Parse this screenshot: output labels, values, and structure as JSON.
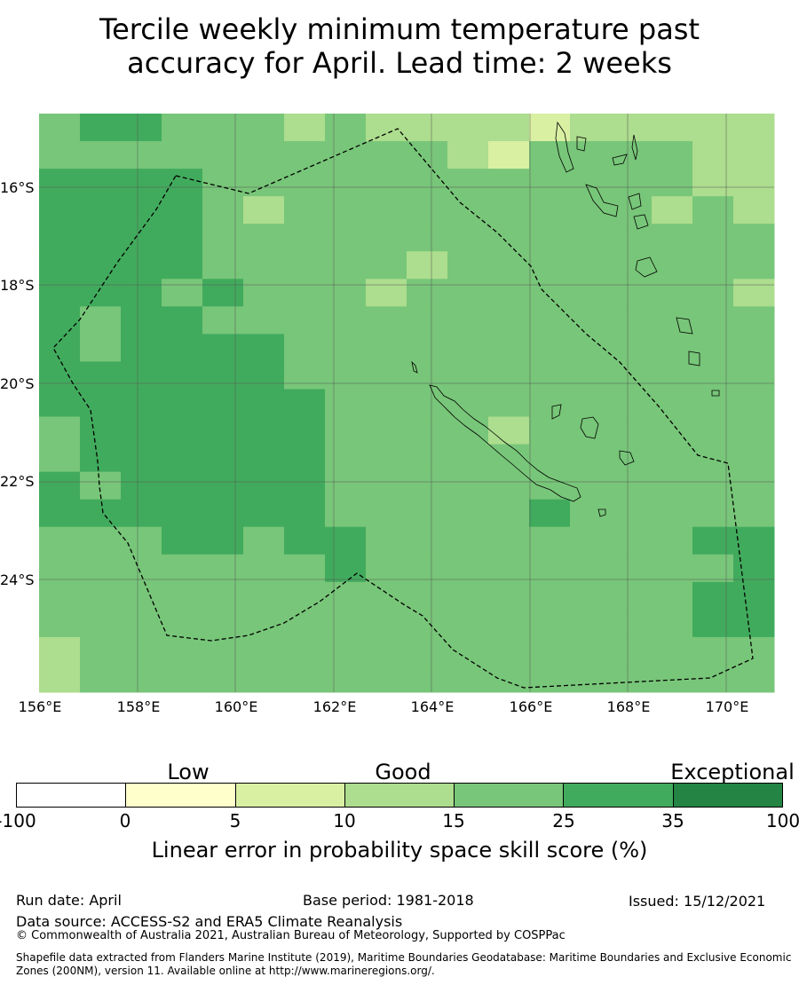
{
  "title": {
    "line1": "Tercile weekly minimum temperature past",
    "line2": "accuracy for April. Lead time: 2 weeks"
  },
  "map": {
    "lon_range": [
      156,
      171
    ],
    "lat_range": [
      -14.3,
      -26.2
    ],
    "lat_labels": [
      "16°S",
      "18°S",
      "20°S",
      "22°S",
      "24°S"
    ],
    "lon_labels": [
      "156°E",
      "158°E",
      "160°E",
      "162°E",
      "164°E",
      "166°E",
      "168°E",
      "170°E"
    ],
    "grid_cell_lon_deg": 0.833,
    "grid_cell_lat_deg": 0.55,
    "cell_values_note_legend_classes": [
      "0-5",
      "5-10",
      "10-15",
      "15-25",
      "25-35"
    ],
    "boundary_name": "New Caledonia EEZ",
    "boundary_style": "dashed"
  },
  "colorbar": {
    "categories": [
      {
        "label": "Low"
      },
      {
        "label": "Good"
      },
      {
        "label": "Exceptional"
      }
    ],
    "ticks": [
      "-100",
      "0",
      "5",
      "10",
      "15",
      "25",
      "35",
      "100"
    ],
    "colors": [
      "#ffffff",
      "#ffffcc",
      "#d9f0a3",
      "#addd8e",
      "#78c679",
      "#41ab5d",
      "#238443"
    ],
    "label": "Linear error in probability space skill score (%)"
  },
  "footer": {
    "run_date": "Run date: April",
    "base_period": "Base period: 1981-2018",
    "issued": "Issued: 15/12/2021",
    "data_source": "Data source: ACCESS-S2 and ERA5 Climate Reanalysis",
    "copyright": "© Commonwealth of Australia 2021, Australian Bureau of Meteorology, Supported by COSPPac",
    "shapefile": "Shapefile data extracted from Flanders Marine Institute (2019), Maritime Boundaries Geodatabase: Maritime Boundaries and Exclusive Economic Zones (200NM), version 11. Available online at http://www.marineregions.org/."
  }
}
